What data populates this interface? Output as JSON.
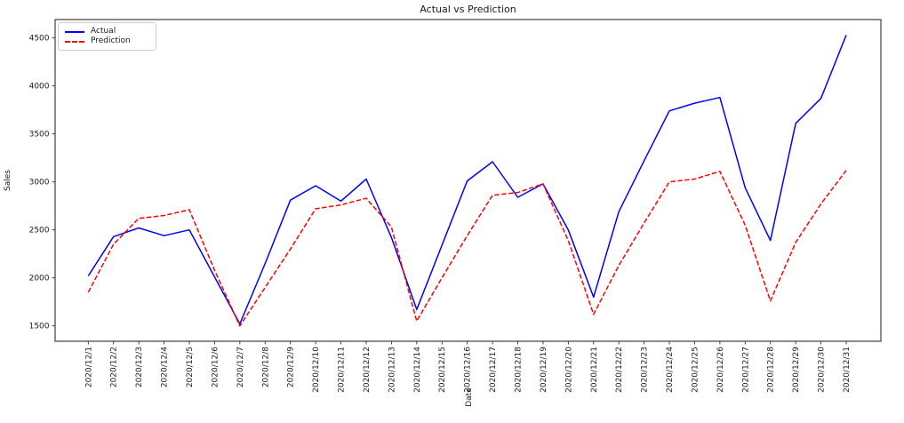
{
  "title": "Actual vs Prediction",
  "legend": {
    "position": "upper left",
    "entries": [
      {
        "label": "Actual",
        "color": "#0000ff",
        "style": "solid"
      },
      {
        "label": "Prediction",
        "color": "#ff0000",
        "style": "dashed"
      }
    ]
  },
  "chart_data": {
    "type": "line",
    "title": "Actual vs Prediction",
    "xlabel": "Date",
    "ylabel": "Sales",
    "grid": false,
    "legend_position": "upper left",
    "x": [
      "2020/12/1",
      "2020/12/2",
      "2020/12/3",
      "2020/12/4",
      "2020/12/5",
      "2020/12/6",
      "2020/12/7",
      "2020/12/8",
      "2020/12/9",
      "2020/12/10",
      "2020/12/11",
      "2020/12/12",
      "2020/12/13",
      "2020/12/14",
      "2020/12/15",
      "2020/12/16",
      "2020/12/17",
      "2020/12/18",
      "2020/12/19",
      "2020/12/20",
      "2020/12/21",
      "2020/12/22",
      "2020/12/23",
      "2020/12/24",
      "2020/12/25",
      "2020/12/26",
      "2020/12/27",
      "2020/12/28",
      "2020/12/29",
      "2020/12/30",
      "2020/12/31"
    ],
    "series": [
      {
        "name": "Actual",
        "color": "#0000ff",
        "style": "solid",
        "values": [
          2020,
          2430,
          2520,
          2440,
          2500,
          2010,
          1520,
          2150,
          2810,
          2960,
          2800,
          3030,
          2420,
          1670,
          2340,
          3010,
          3210,
          2840,
          2980,
          2500,
          1800,
          2690,
          3220,
          3740,
          3820,
          3880,
          2940,
          2390,
          3610,
          3870,
          4530
        ]
      },
      {
        "name": "Prediction",
        "color": "#ff0000",
        "style": "dashed",
        "values": [
          1850,
          2350,
          2620,
          2650,
          2710,
          2080,
          1500,
          1900,
          2300,
          2720,
          2760,
          2830,
          2530,
          1550,
          2000,
          2440,
          2860,
          2890,
          2980,
          2390,
          1620,
          2130,
          2570,
          3000,
          3030,
          3110,
          2550,
          1760,
          2370,
          2770,
          3120
        ]
      }
    ],
    "yticks": [
      1500,
      2000,
      2500,
      3000,
      3500,
      4000,
      4500
    ],
    "ylim": [
      1340,
      4690
    ]
  }
}
